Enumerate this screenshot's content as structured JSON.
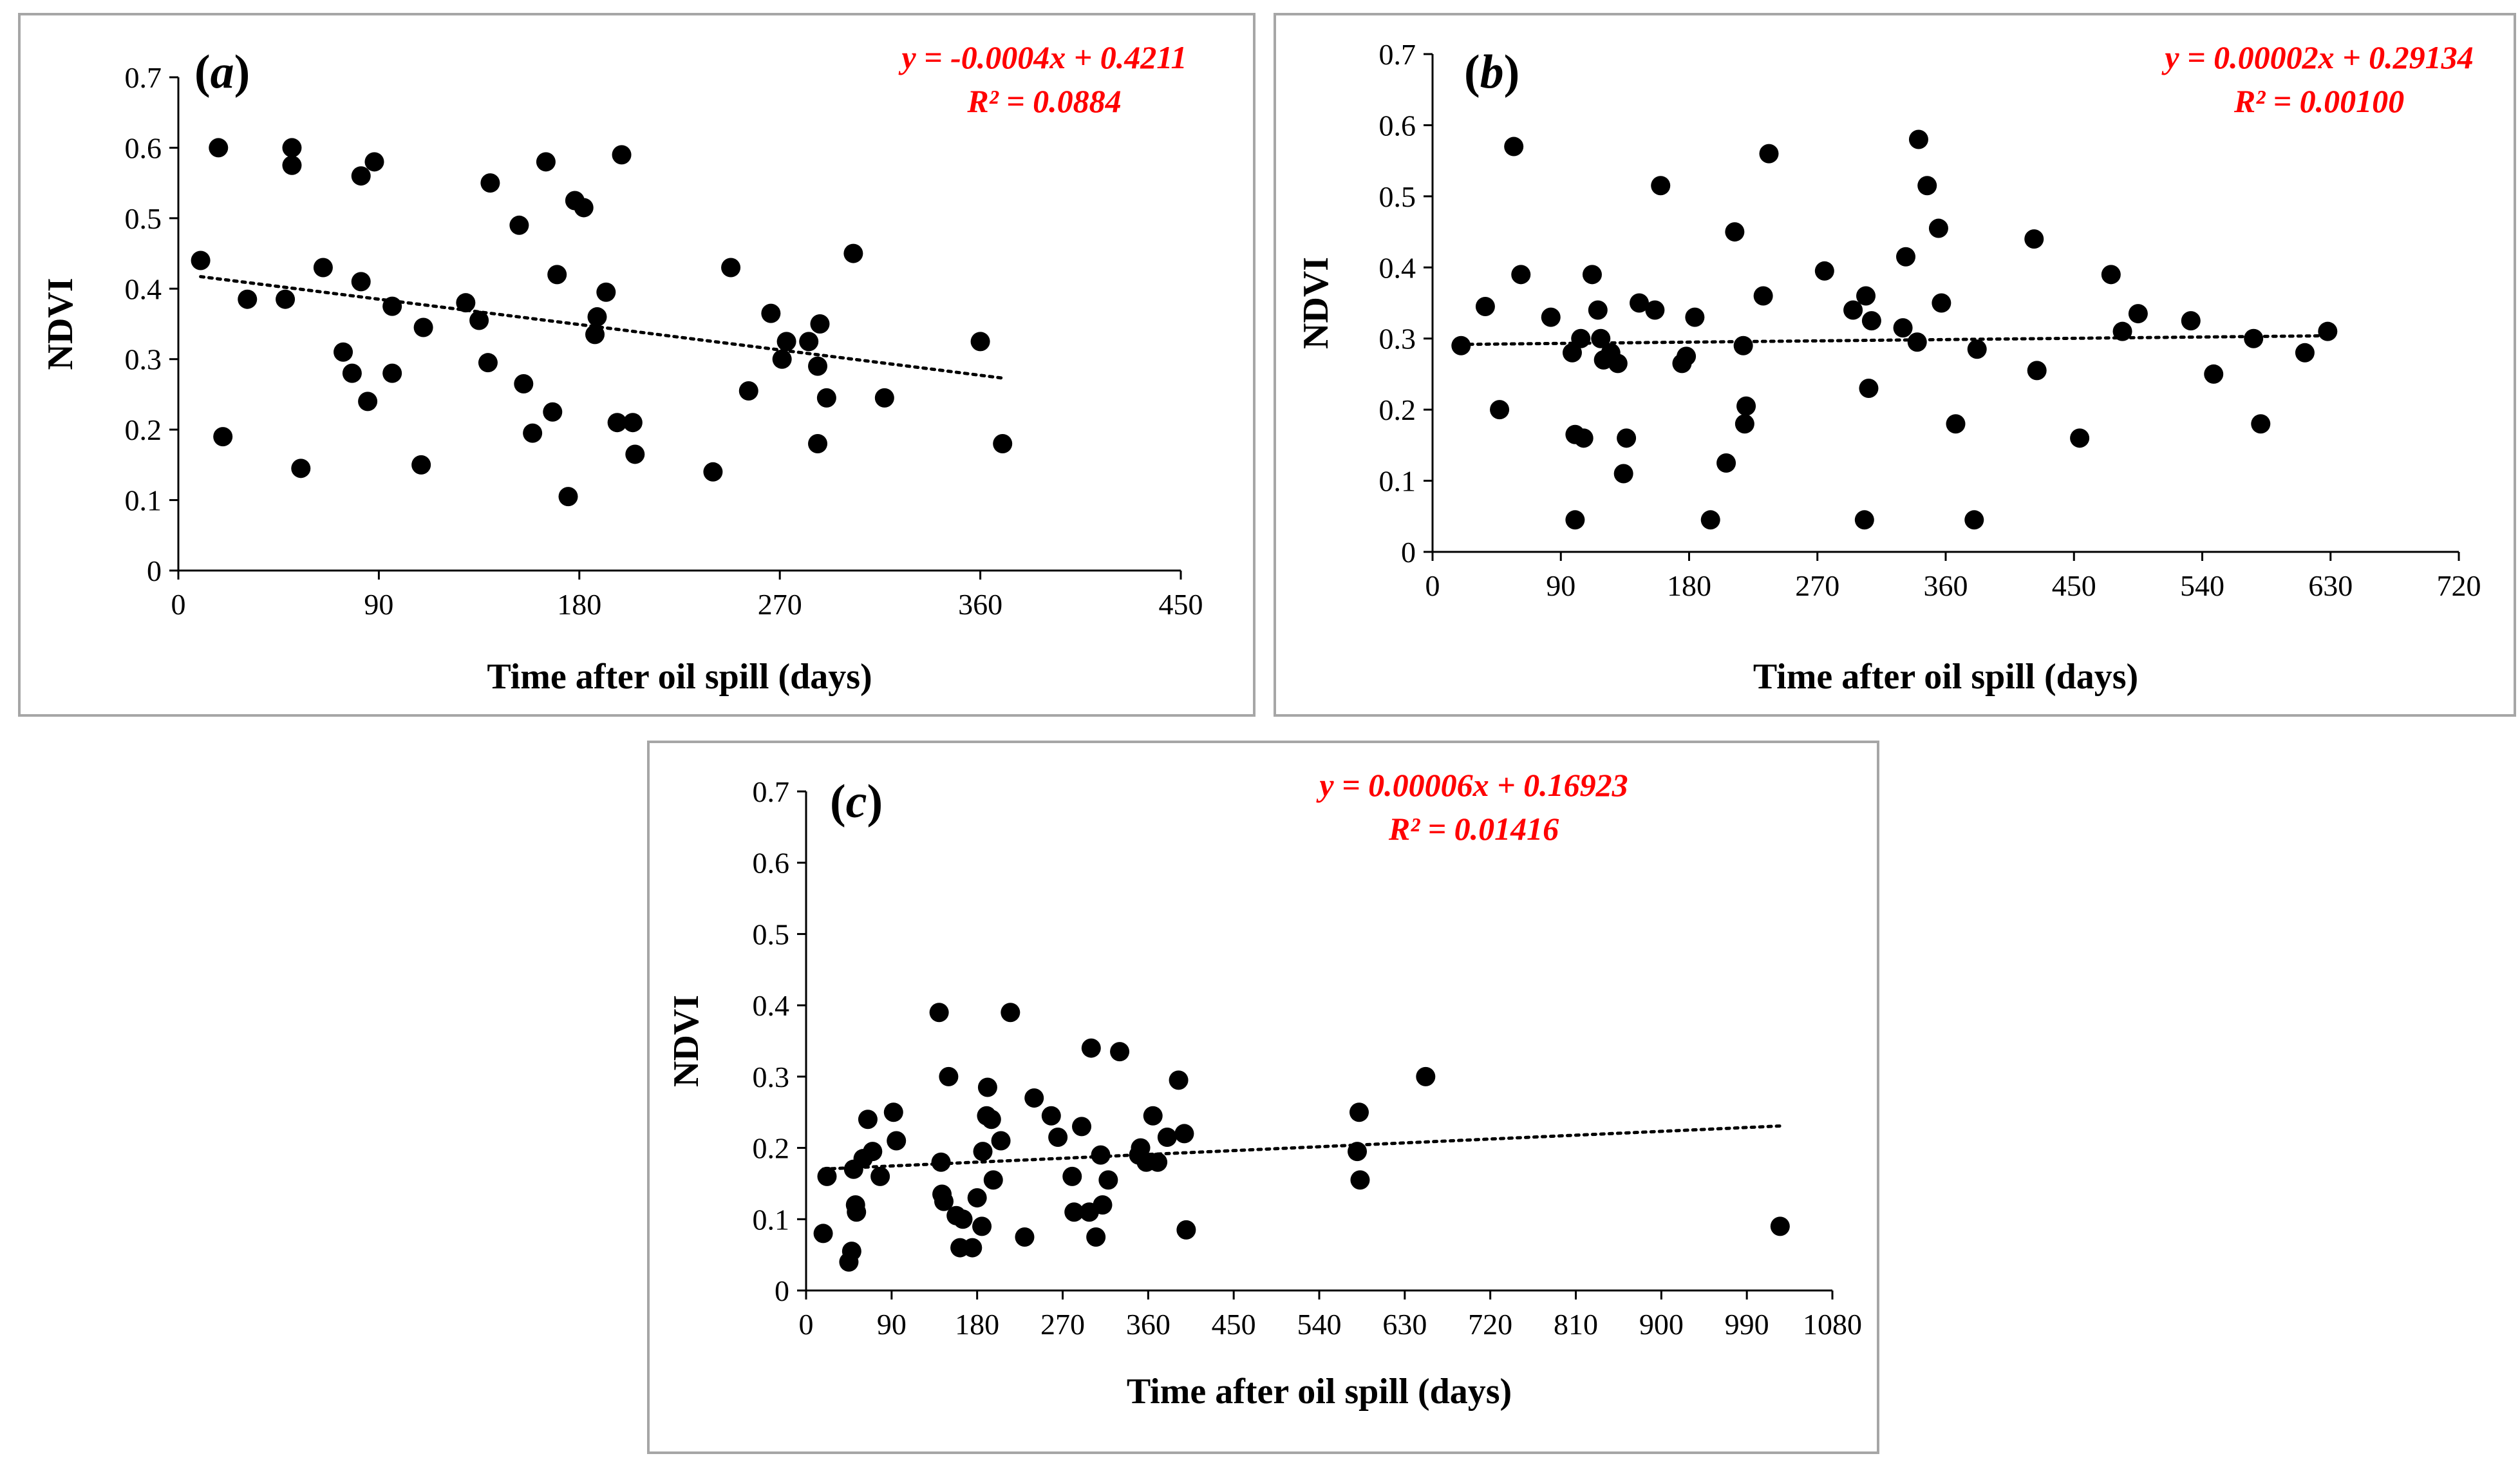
{
  "chart_data": [
    {
      "type": "scatter",
      "panel_label": "(a)",
      "xlabel": "Time after oil spill (days)",
      "ylabel": "NDVI",
      "xlim": [
        0,
        450
      ],
      "ylim": [
        0,
        0.7
      ],
      "xticks": [
        0,
        90,
        180,
        270,
        360,
        450
      ],
      "yticks": [
        0,
        0.1,
        0.2,
        0.3,
        0.4,
        0.5,
        0.6,
        0.7
      ],
      "equation": "y = -0.0004x + 0.4211",
      "r_squared": "R² = 0.0884",
      "trendline": {
        "slope": -0.0004,
        "intercept": 0.4211,
        "x_range": [
          10,
          370
        ]
      },
      "points": [
        [
          10,
          0.44
        ],
        [
          18,
          0.6
        ],
        [
          20,
          0.19
        ],
        [
          31,
          0.385
        ],
        [
          48,
          0.385
        ],
        [
          51,
          0.6
        ],
        [
          51,
          0.575
        ],
        [
          55,
          0.145
        ],
        [
          65,
          0.43
        ],
        [
          74,
          0.31
        ],
        [
          78,
          0.28
        ],
        [
          82,
          0.41
        ],
        [
          82,
          0.56
        ],
        [
          85,
          0.24
        ],
        [
          88,
          0.58
        ],
        [
          96,
          0.375
        ],
        [
          96,
          0.28
        ],
        [
          109,
          0.15
        ],
        [
          110,
          0.345
        ],
        [
          129,
          0.38
        ],
        [
          135,
          0.355
        ],
        [
          139,
          0.295
        ],
        [
          140,
          0.55
        ],
        [
          153,
          0.49
        ],
        [
          155,
          0.265
        ],
        [
          159,
          0.195
        ],
        [
          165,
          0.58
        ],
        [
          168,
          0.225
        ],
        [
          170,
          0.42
        ],
        [
          175,
          0.105
        ],
        [
          178,
          0.525
        ],
        [
          182,
          0.515
        ],
        [
          187,
          0.335
        ],
        [
          188,
          0.36
        ],
        [
          192,
          0.395
        ],
        [
          197,
          0.21
        ],
        [
          199,
          0.59
        ],
        [
          204,
          0.21
        ],
        [
          205,
          0.165
        ],
        [
          240,
          0.14
        ],
        [
          248,
          0.43
        ],
        [
          256,
          0.255
        ],
        [
          266,
          0.365
        ],
        [
          271,
          0.3
        ],
        [
          273,
          0.325
        ],
        [
          283,
          0.325
        ],
        [
          287,
          0.29
        ],
        [
          287,
          0.18
        ],
        [
          288,
          0.35
        ],
        [
          291,
          0.245
        ],
        [
          303,
          0.45
        ],
        [
          317,
          0.245
        ],
        [
          360,
          0.325
        ],
        [
          370,
          0.18
        ]
      ]
    },
    {
      "type": "scatter",
      "panel_label": "(b)",
      "xlabel": "Time after oil spill (days)",
      "ylabel": "NDVI",
      "xlim": [
        0,
        720
      ],
      "ylim": [
        0,
        0.7
      ],
      "xticks": [
        0,
        90,
        180,
        270,
        360,
        450,
        540,
        630,
        720
      ],
      "yticks": [
        0,
        0.1,
        0.2,
        0.3,
        0.4,
        0.5,
        0.6,
        0.7
      ],
      "equation": "y = 0.00002x + 0.29134",
      "r_squared": "R² = 0.00100",
      "trendline": {
        "slope": 2e-05,
        "intercept": 0.29134,
        "x_range": [
          20,
          630
        ]
      },
      "points": [
        [
          20,
          0.29
        ],
        [
          37,
          0.345
        ],
        [
          47,
          0.2
        ],
        [
          57,
          0.57
        ],
        [
          62,
          0.39
        ],
        [
          83,
          0.33
        ],
        [
          98,
          0.28
        ],
        [
          100,
          0.045
        ],
        [
          100,
          0.165
        ],
        [
          104,
          0.3
        ],
        [
          106,
          0.16
        ],
        [
          112,
          0.39
        ],
        [
          116,
          0.34
        ],
        [
          118,
          0.3
        ],
        [
          120,
          0.27
        ],
        [
          125,
          0.28
        ],
        [
          130,
          0.265
        ],
        [
          134,
          0.11
        ],
        [
          136,
          0.16
        ],
        [
          145,
          0.35
        ],
        [
          156,
          0.34
        ],
        [
          160,
          0.515
        ],
        [
          175,
          0.265
        ],
        [
          178,
          0.275
        ],
        [
          184,
          0.33
        ],
        [
          195,
          0.045
        ],
        [
          206,
          0.125
        ],
        [
          212,
          0.45
        ],
        [
          218,
          0.29
        ],
        [
          219,
          0.18
        ],
        [
          220,
          0.205
        ],
        [
          232,
          0.36
        ],
        [
          236,
          0.56
        ],
        [
          275,
          0.395
        ],
        [
          295,
          0.34
        ],
        [
          303,
          0.045
        ],
        [
          304,
          0.36
        ],
        [
          306,
          0.23
        ],
        [
          308,
          0.325
        ],
        [
          330,
          0.315
        ],
        [
          332,
          0.415
        ],
        [
          340,
          0.295
        ],
        [
          341,
          0.58
        ],
        [
          347,
          0.515
        ],
        [
          355,
          0.455
        ],
        [
          357,
          0.35
        ],
        [
          367,
          0.18
        ],
        [
          380,
          0.045
        ],
        [
          382,
          0.285
        ],
        [
          422,
          0.44
        ],
        [
          424,
          0.255
        ],
        [
          454,
          0.16
        ],
        [
          476,
          0.39
        ],
        [
          484,
          0.31
        ],
        [
          495,
          0.335
        ],
        [
          532,
          0.325
        ],
        [
          548,
          0.25
        ],
        [
          576,
          0.3
        ],
        [
          581,
          0.18
        ],
        [
          612,
          0.28
        ],
        [
          628,
          0.31
        ]
      ]
    },
    {
      "type": "scatter",
      "panel_label": "(c)",
      "xlabel": "Time after oil spill (days)",
      "ylabel": "NDVI",
      "xlim": [
        0,
        1080
      ],
      "ylim": [
        0,
        0.7
      ],
      "xticks": [
        0,
        90,
        180,
        270,
        360,
        450,
        540,
        630,
        720,
        810,
        900,
        990,
        1080
      ],
      "yticks": [
        0,
        0.1,
        0.2,
        0.3,
        0.4,
        0.5,
        0.6,
        0.7
      ],
      "equation": "y = 0.00006x + 0.16923",
      "r_squared": "R² = 0.01416",
      "trendline": {
        "slope": 6e-05,
        "intercept": 0.16923,
        "x_range": [
          18,
          1028
        ]
      },
      "points": [
        [
          18,
          0.08
        ],
        [
          22,
          0.16
        ],
        [
          45,
          0.04
        ],
        [
          48,
          0.055
        ],
        [
          50,
          0.17
        ],
        [
          52,
          0.12
        ],
        [
          53,
          0.11
        ],
        [
          60,
          0.185
        ],
        [
          65,
          0.24
        ],
        [
          70,
          0.195
        ],
        [
          78,
          0.16
        ],
        [
          92,
          0.25
        ],
        [
          95,
          0.21
        ],
        [
          140,
          0.39
        ],
        [
          142,
          0.18
        ],
        [
          143,
          0.135
        ],
        [
          145,
          0.125
        ],
        [
          150,
          0.3
        ],
        [
          158,
          0.105
        ],
        [
          162,
          0.06
        ],
        [
          165,
          0.1
        ],
        [
          175,
          0.06
        ],
        [
          180,
          0.13
        ],
        [
          185,
          0.09
        ],
        [
          186,
          0.195
        ],
        [
          190,
          0.245
        ],
        [
          191,
          0.285
        ],
        [
          195,
          0.24
        ],
        [
          197,
          0.155
        ],
        [
          205,
          0.21
        ],
        [
          215,
          0.39
        ],
        [
          230,
          0.075
        ],
        [
          240,
          0.27
        ],
        [
          258,
          0.245
        ],
        [
          265,
          0.215
        ],
        [
          280,
          0.16
        ],
        [
          282,
          0.11
        ],
        [
          290,
          0.23
        ],
        [
          298,
          0.11
        ],
        [
          300,
          0.34
        ],
        [
          305,
          0.075
        ],
        [
          310,
          0.19
        ],
        [
          312,
          0.12
        ],
        [
          318,
          0.155
        ],
        [
          330,
          0.335
        ],
        [
          350,
          0.19
        ],
        [
          352,
          0.2
        ],
        [
          358,
          0.18
        ],
        [
          365,
          0.245
        ],
        [
          370,
          0.18
        ],
        [
          380,
          0.215
        ],
        [
          392,
          0.295
        ],
        [
          398,
          0.22
        ],
        [
          400,
          0.085
        ],
        [
          580,
          0.195
        ],
        [
          582,
          0.25
        ],
        [
          583,
          0.155
        ],
        [
          652,
          0.3
        ],
        [
          1025,
          0.09
        ]
      ]
    }
  ]
}
